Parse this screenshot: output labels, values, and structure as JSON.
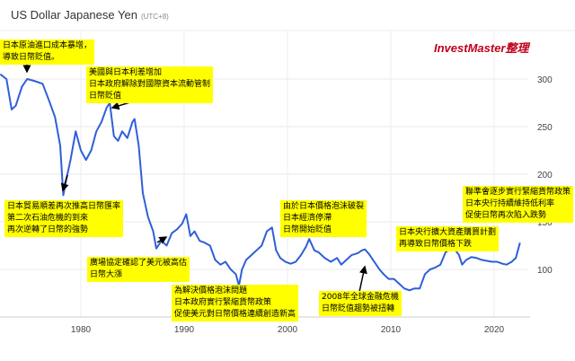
{
  "title": "US Dollar Japanese Yen",
  "timezone": "(UTC+8)",
  "watermark": "InvestMaster整理",
  "chart_data": {
    "type": "line",
    "title": "US Dollar Japanese Yen",
    "xlim": [
      1972.2,
      2023
    ],
    "ylim": [
      50,
      325
    ],
    "x_ticks": [
      "1980",
      "1990",
      "2000",
      "2010",
      "2020"
    ],
    "y_ticks": [
      "100",
      "150",
      "200",
      "250",
      "300"
    ],
    "grid": true,
    "line_color": "#2f5fd8",
    "series": [
      {
        "x": [
          1972.2,
          1972.8,
          1973.3,
          1973.7,
          1974.3,
          1974.8,
          1975.5,
          1976.3,
          1976.9,
          1977.5,
          1978.0,
          1978.3,
          1978.6,
          1979.0,
          1979.5,
          1980.0,
          1980.5,
          1981.0,
          1981.5,
          1982.0,
          1982.5,
          1982.8,
          1983.2,
          1983.6,
          1984.0,
          1984.5,
          1985.0,
          1985.2,
          1985.6,
          1986.0,
          1986.5,
          1987.0,
          1987.3,
          1987.8,
          1988.3,
          1988.8,
          1989.3,
          1989.8,
          1990.2,
          1990.6,
          1991.0,
          1991.5,
          1992.0,
          1992.5,
          1993.0,
          1993.5,
          1994.0,
          1994.5,
          1995.0,
          1995.3,
          1995.6,
          1996.0,
          1996.5,
          1997.0,
          1997.5,
          1998.0,
          1998.5,
          1998.9,
          1999.3,
          1999.8,
          2000.3,
          2000.8,
          2001.3,
          2001.8,
          2002.1,
          2002.6,
          2003.0,
          2003.6,
          2004.2,
          2004.8,
          2005.2,
          2005.7,
          2006.2,
          2006.8,
          2007.2,
          2007.5,
          2007.9,
          2008.4,
          2008.9,
          2009.3,
          2009.8,
          2010.3,
          2010.8,
          2011.3,
          2011.8,
          2012.3,
          2012.8,
          2013.3,
          2013.8,
          2014.3,
          2014.8,
          2015.3,
          2015.8,
          2016.2,
          2016.6,
          2016.9,
          2017.3,
          2017.8,
          2018.3,
          2018.8,
          2019.3,
          2019.8,
          2020.3,
          2020.8,
          2021.2,
          2021.7,
          2022.1,
          2022.5
        ],
        "y": [
          305,
          300,
          268,
          272,
          292,
          300,
          298,
          295,
          278,
          260,
          230,
          178,
          195,
          215,
          245,
          225,
          215,
          225,
          245,
          255,
          270,
          275,
          240,
          235,
          245,
          238,
          255,
          258,
          230,
          180,
          155,
          140,
          122,
          130,
          125,
          138,
          142,
          148,
          158,
          135,
          140,
          130,
          128,
          125,
          110,
          105,
          108,
          100,
          95,
          83,
          100,
          110,
          115,
          120,
          125,
          140,
          144,
          120,
          112,
          108,
          106,
          108,
          115,
          124,
          132,
          120,
          118,
          112,
          108,
          112,
          105,
          110,
          115,
          117,
          120,
          121,
          116,
          108,
          100,
          95,
          90,
          90,
          85,
          80,
          78,
          80,
          80,
          95,
          100,
          102,
          105,
          118,
          122,
          121,
          115,
          105,
          110,
          113,
          112,
          110,
          109,
          108,
          108,
          106,
          105,
          108,
          112,
          128
        ]
      }
    ]
  },
  "annotations": [
    {
      "text": "日本原油進口成本暴增，\n導致日幣貶值。"
    },
    {
      "text": "美國與日本利差增加\n日本政府解除對國際資本流動管制\n日幣貶值"
    },
    {
      "text": "日本貿易順差再次推高日幣匯率\n第二次石油危機的到來\n再次逆轉了日幣的強勢"
    },
    {
      "text": "廣場協定確認了美元被高估\n日幣大漲"
    },
    {
      "text": "為解決價格泡沫問題\n日本政府實行緊縮貨幣政策\n促使美元對日幣價格連續創造新高"
    },
    {
      "text": "由於日本價格泡沫破裂\n日本經濟停滯\n日幣開始貶值"
    },
    {
      "text": "2008年全球金融危機\n日幣貶值趨勢被扭轉"
    },
    {
      "text": "日本央行擴大資產購買計劃\n再導致日幣價格下跌"
    },
    {
      "text": "聯準會逐步實行緊縮貨幣政策\n日本央行持續維持低利率\n促使日幣再次陷入跌勢"
    }
  ]
}
